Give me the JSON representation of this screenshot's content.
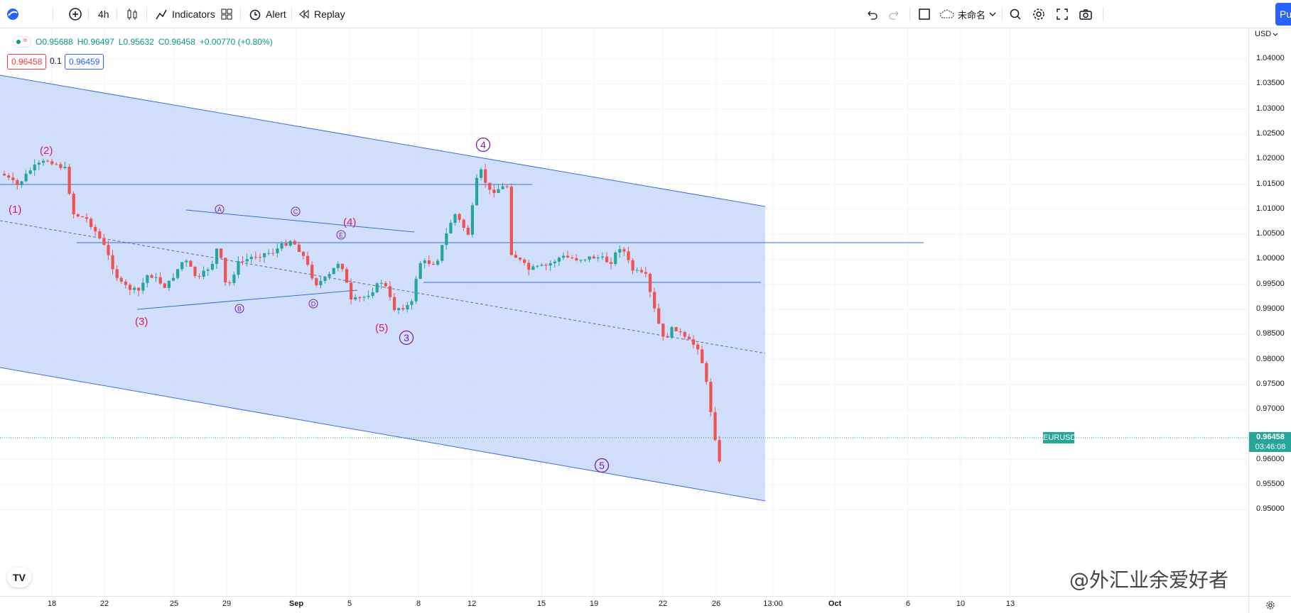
{
  "toolbar": {
    "interval": "4h",
    "indicators_label": "Indicators",
    "alert_label": "Alert",
    "replay_label": "Replay",
    "layout_name": "未命名",
    "publish_label": "Pu"
  },
  "legend": {
    "open": "O0.95688",
    "high": "H0.96497",
    "low": "L0.95632",
    "close": "C0.96458",
    "change": "+0.00770 (+0.80%)",
    "bid": "0.96458",
    "spread": "0.1",
    "ask": "0.96459"
  },
  "price_axis": {
    "currency": "USD",
    "ticks": [
      "1.04000",
      "1.03500",
      "1.03000",
      "1.02500",
      "1.02000",
      "1.01500",
      "1.01000",
      "1.00500",
      "1.00000",
      "0.99500",
      "0.99000",
      "0.98500",
      "0.98000",
      "0.97500",
      "0.97000",
      "0.96000",
      "0.95500",
      "0.95000"
    ],
    "symbol_label": "EURUSD",
    "last_price": "0.96458",
    "countdown": "03:46:08"
  },
  "time_axis": {
    "ticks": [
      "18",
      "22",
      "25",
      "29",
      "Sep",
      "5",
      "8",
      "12",
      "15",
      "19",
      "22",
      "26",
      "13:00",
      "Oct",
      "6",
      "10",
      "13"
    ]
  },
  "wave_labels": [
    "(1)",
    "(2)",
    "(3)",
    "(4)",
    "(5)",
    "A",
    "B",
    "C",
    "D",
    "E",
    "3",
    "4",
    "5"
  ],
  "watermark": "@外汇业余爱好者",
  "colors": {
    "up": "#26a69a",
    "down": "#ef5350",
    "channel_fill": "#c9d8fb",
    "line": "#3a6fd8",
    "wave_red": "#d81b60",
    "wave_purple": "#7b1fa2",
    "price_tag": "#26a69a"
  }
}
